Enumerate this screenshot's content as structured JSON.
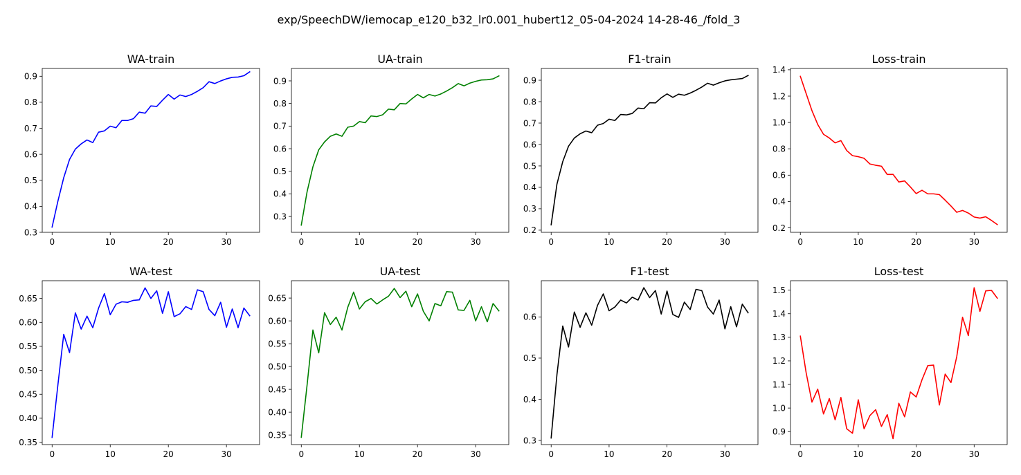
{
  "figure": {
    "suptitle": "exp/SpeechDW/iemocap_e120_b32_lr0.001_hubert12_05-04-2024 14-28-46_/fold_3"
  },
  "chart_data": [
    {
      "type": "line",
      "title": "WA-train",
      "color": "#0000ff",
      "xlim": [
        -1.7,
        35.7
      ],
      "ylim": [
        0.3,
        0.93
      ],
      "xticks": [
        0,
        10,
        20,
        30
      ],
      "xtick_labels": [
        "0",
        "10",
        "20",
        "30"
      ],
      "yticks": [
        0.3,
        0.4,
        0.5,
        0.6,
        0.7,
        0.8,
        0.9
      ],
      "ytick_labels": [
        "0.3",
        "0.4",
        "0.5",
        "0.6",
        "0.7",
        "0.8",
        "0.9"
      ],
      "x": [
        0,
        1,
        2,
        3,
        4,
        5,
        6,
        7,
        8,
        9,
        10,
        11,
        12,
        13,
        14,
        15,
        16,
        17,
        18,
        19,
        20,
        21,
        22,
        23,
        24,
        25,
        26,
        27,
        28,
        29,
        30,
        31,
        32,
        33,
        34
      ],
      "values": [
        0.32,
        0.42,
        0.51,
        0.58,
        0.62,
        0.64,
        0.655,
        0.645,
        0.685,
        0.69,
        0.708,
        0.702,
        0.73,
        0.73,
        0.737,
        0.762,
        0.758,
        0.786,
        0.784,
        0.808,
        0.83,
        0.812,
        0.828,
        0.822,
        0.83,
        0.842,
        0.856,
        0.879,
        0.872,
        0.882,
        0.89,
        0.896,
        0.897,
        0.902,
        0.917
      ]
    },
    {
      "type": "line",
      "title": "UA-train",
      "color": "#008000",
      "xlim": [
        -1.7,
        35.7
      ],
      "ylim": [
        0.23,
        0.955
      ],
      "xticks": [
        0,
        10,
        20,
        30
      ],
      "xtick_labels": [
        "0",
        "10",
        "20",
        "30"
      ],
      "yticks": [
        0.3,
        0.4,
        0.5,
        0.6,
        0.7,
        0.8,
        0.9
      ],
      "ytick_labels": [
        "0.3",
        "0.4",
        "0.5",
        "0.6",
        "0.7",
        "0.8",
        "0.9"
      ],
      "x": [
        0,
        1,
        2,
        3,
        4,
        5,
        6,
        7,
        8,
        9,
        10,
        11,
        12,
        13,
        14,
        15,
        16,
        17,
        18,
        19,
        20,
        21,
        22,
        23,
        24,
        25,
        26,
        27,
        28,
        29,
        30,
        31,
        32,
        33,
        34
      ],
      "values": [
        0.262,
        0.41,
        0.52,
        0.595,
        0.63,
        0.655,
        0.665,
        0.655,
        0.695,
        0.7,
        0.72,
        0.715,
        0.745,
        0.742,
        0.75,
        0.775,
        0.772,
        0.8,
        0.798,
        0.82,
        0.84,
        0.825,
        0.84,
        0.833,
        0.842,
        0.855,
        0.87,
        0.888,
        0.878,
        0.89,
        0.898,
        0.904,
        0.905,
        0.909,
        0.922
      ]
    },
    {
      "type": "line",
      "title": "F1-train",
      "color": "#000000",
      "xlim": [
        -1.7,
        35.7
      ],
      "ylim": [
        0.19,
        0.955
      ],
      "xticks": [
        0,
        10,
        20,
        30
      ],
      "xtick_labels": [
        "0",
        "10",
        "20",
        "30"
      ],
      "yticks": [
        0.2,
        0.3,
        0.4,
        0.5,
        0.6,
        0.7,
        0.8,
        0.9
      ],
      "ytick_labels": [
        "0.2",
        "0.3",
        "0.4",
        "0.5",
        "0.6",
        "0.7",
        "0.8",
        "0.9"
      ],
      "x": [
        0,
        1,
        2,
        3,
        4,
        5,
        6,
        7,
        8,
        9,
        10,
        11,
        12,
        13,
        14,
        15,
        16,
        17,
        18,
        19,
        20,
        21,
        22,
        23,
        24,
        25,
        26,
        27,
        28,
        29,
        30,
        31,
        32,
        33,
        34
      ],
      "values": [
        0.225,
        0.415,
        0.52,
        0.592,
        0.63,
        0.65,
        0.663,
        0.655,
        0.69,
        0.698,
        0.718,
        0.712,
        0.74,
        0.738,
        0.745,
        0.77,
        0.767,
        0.795,
        0.794,
        0.818,
        0.836,
        0.82,
        0.835,
        0.83,
        0.84,
        0.853,
        0.868,
        0.886,
        0.877,
        0.888,
        0.897,
        0.902,
        0.905,
        0.908,
        0.922
      ]
    },
    {
      "type": "line",
      "title": "Loss-train",
      "color": "#ff0000",
      "xlim": [
        -1.7,
        35.7
      ],
      "ylim": [
        0.166,
        1.41
      ],
      "xticks": [
        0,
        10,
        20,
        30
      ],
      "xtick_labels": [
        "0",
        "10",
        "20",
        "30"
      ],
      "yticks": [
        0.2,
        0.4,
        0.6,
        0.8,
        1.0,
        1.2,
        1.4
      ],
      "ytick_labels": [
        "0.2",
        "0.4",
        "0.6",
        "0.8",
        "1.0",
        "1.2",
        "1.4"
      ],
      "x": [
        0,
        1,
        2,
        3,
        4,
        5,
        6,
        7,
        8,
        9,
        10,
        11,
        12,
        13,
        14,
        15,
        16,
        17,
        18,
        19,
        20,
        21,
        22,
        23,
        24,
        25,
        26,
        27,
        28,
        29,
        30,
        31,
        32,
        33,
        34
      ],
      "values": [
        1.35,
        1.22,
        1.09,
        0.985,
        0.91,
        0.882,
        0.845,
        0.862,
        0.787,
        0.748,
        0.74,
        0.728,
        0.685,
        0.675,
        0.668,
        0.605,
        0.606,
        0.548,
        0.556,
        0.51,
        0.46,
        0.485,
        0.458,
        0.458,
        0.452,
        0.41,
        0.366,
        0.318,
        0.332,
        0.312,
        0.282,
        0.274,
        0.284,
        0.256,
        0.225
      ]
    },
    {
      "type": "line",
      "title": "WA-test",
      "color": "#0000ff",
      "xlim": [
        -1.7,
        35.7
      ],
      "ylim": [
        0.345,
        0.687
      ],
      "xticks": [
        0,
        10,
        20,
        30
      ],
      "xtick_labels": [
        "0",
        "10",
        "20",
        "30"
      ],
      "yticks": [
        0.35,
        0.4,
        0.45,
        0.5,
        0.55,
        0.6,
        0.65
      ],
      "ytick_labels": [
        "0.35",
        "0.40",
        "0.45",
        "0.50",
        "0.55",
        "0.60",
        "0.65"
      ],
      "x": [
        0,
        1,
        2,
        3,
        4,
        5,
        6,
        7,
        8,
        9,
        10,
        11,
        12,
        13,
        14,
        15,
        16,
        17,
        18,
        19,
        20,
        21,
        22,
        23,
        24,
        25,
        26,
        27,
        28,
        29,
        30,
        31,
        32,
        33,
        34
      ],
      "values": [
        0.36,
        0.47,
        0.575,
        0.537,
        0.62,
        0.586,
        0.613,
        0.589,
        0.63,
        0.66,
        0.616,
        0.638,
        0.643,
        0.642,
        0.646,
        0.647,
        0.672,
        0.65,
        0.666,
        0.619,
        0.664,
        0.612,
        0.618,
        0.633,
        0.627,
        0.668,
        0.664,
        0.627,
        0.614,
        0.642,
        0.59,
        0.628,
        0.589,
        0.63,
        0.614
      ]
    },
    {
      "type": "line",
      "title": "UA-test",
      "color": "#008000",
      "xlim": [
        -1.7,
        35.7
      ],
      "ylim": [
        0.329,
        0.688
      ],
      "xticks": [
        0,
        10,
        20,
        30
      ],
      "xtick_labels": [
        "0",
        "10",
        "20",
        "30"
      ],
      "yticks": [
        0.35,
        0.4,
        0.45,
        0.5,
        0.55,
        0.6,
        0.65
      ],
      "ytick_labels": [
        "0.35",
        "0.40",
        "0.45",
        "0.50",
        "0.55",
        "0.60",
        "0.65"
      ],
      "x": [
        0,
        1,
        2,
        3,
        4,
        5,
        6,
        7,
        8,
        9,
        10,
        11,
        12,
        13,
        14,
        15,
        16,
        17,
        18,
        19,
        20,
        21,
        22,
        23,
        24,
        25,
        26,
        27,
        28,
        29,
        30,
        31,
        32,
        33,
        34
      ],
      "values": [
        0.345,
        0.46,
        0.58,
        0.53,
        0.618,
        0.592,
        0.608,
        0.58,
        0.63,
        0.663,
        0.626,
        0.642,
        0.649,
        0.637,
        0.646,
        0.654,
        0.671,
        0.651,
        0.665,
        0.631,
        0.659,
        0.621,
        0.6,
        0.638,
        0.633,
        0.664,
        0.663,
        0.624,
        0.623,
        0.645,
        0.6,
        0.631,
        0.598,
        0.638,
        0.622
      ]
    },
    {
      "type": "line",
      "title": "F1-test",
      "color": "#000000",
      "xlim": [
        -1.7,
        35.7
      ],
      "ylim": [
        0.29,
        0.688
      ],
      "xticks": [
        0,
        10,
        20,
        30
      ],
      "xtick_labels": [
        "0",
        "10",
        "20",
        "30"
      ],
      "yticks": [
        0.3,
        0.4,
        0.5,
        0.6
      ],
      "ytick_labels": [
        "0.3",
        "0.4",
        "0.5",
        "0.6"
      ],
      "x": [
        0,
        1,
        2,
        3,
        4,
        5,
        6,
        7,
        8,
        9,
        10,
        11,
        12,
        13,
        14,
        15,
        16,
        17,
        18,
        19,
        20,
        21,
        22,
        23,
        24,
        25,
        26,
        27,
        28,
        29,
        30,
        31,
        32,
        33,
        34
      ],
      "values": [
        0.306,
        0.46,
        0.578,
        0.527,
        0.612,
        0.575,
        0.61,
        0.58,
        0.628,
        0.656,
        0.615,
        0.624,
        0.641,
        0.634,
        0.648,
        0.641,
        0.671,
        0.647,
        0.664,
        0.607,
        0.663,
        0.606,
        0.599,
        0.636,
        0.618,
        0.667,
        0.664,
        0.624,
        0.607,
        0.641,
        0.571,
        0.625,
        0.576,
        0.631,
        0.61
      ]
    },
    {
      "type": "line",
      "title": "Loss-test",
      "color": "#ff0000",
      "xlim": [
        -1.7,
        35.7
      ],
      "ylim": [
        0.845,
        1.54
      ],
      "xticks": [
        0,
        10,
        20,
        30
      ],
      "xtick_labels": [
        "0",
        "10",
        "20",
        "30"
      ],
      "yticks": [
        0.9,
        1.0,
        1.1,
        1.2,
        1.3,
        1.4,
        1.5
      ],
      "ytick_labels": [
        "0.9",
        "1.0",
        "1.1",
        "1.2",
        "1.3",
        "1.4",
        "1.5"
      ],
      "x": [
        0,
        1,
        2,
        3,
        4,
        5,
        6,
        7,
        8,
        9,
        10,
        11,
        12,
        13,
        14,
        15,
        16,
        17,
        18,
        19,
        20,
        21,
        22,
        23,
        24,
        25,
        26,
        27,
        28,
        29,
        30,
        31,
        32,
        33,
        34
      ],
      "values": [
        1.305,
        1.15,
        1.025,
        1.08,
        0.975,
        1.04,
        0.95,
        1.045,
        0.912,
        0.893,
        1.035,
        0.912,
        0.968,
        0.993,
        0.922,
        0.972,
        0.87,
        1.02,
        0.963,
        1.068,
        1.047,
        1.12,
        1.18,
        1.182,
        1.013,
        1.144,
        1.108,
        1.218,
        1.385,
        1.307,
        1.51,
        1.41,
        1.497,
        1.499,
        1.466
      ]
    }
  ]
}
